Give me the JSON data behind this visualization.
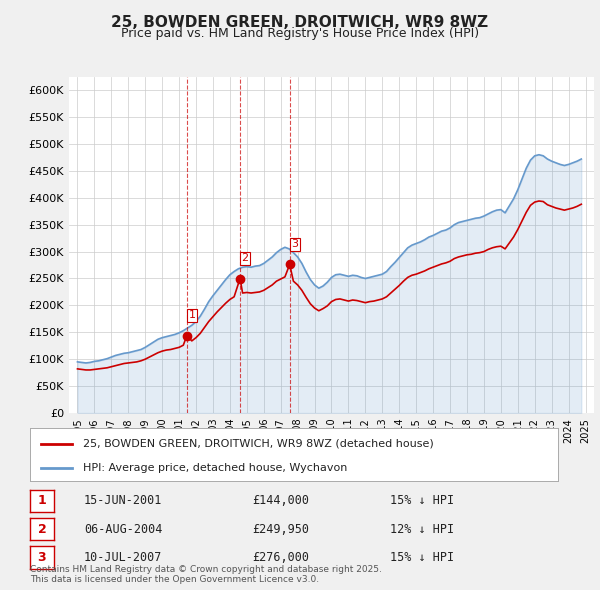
{
  "title": "25, BOWDEN GREEN, DROITWICH, WR9 8WZ",
  "subtitle": "Price paid vs. HM Land Registry's House Price Index (HPI)",
  "bg_color": "#f0f0f0",
  "plot_bg_color": "#ffffff",
  "legend_line1": "25, BOWDEN GREEN, DROITWICH, WR9 8WZ (detached house)",
  "legend_line2": "HPI: Average price, detached house, Wychavon",
  "red_color": "#cc0000",
  "blue_color": "#6699cc",
  "transactions": [
    {
      "num": 1,
      "date": "15-JUN-2001",
      "price": 144000,
      "pct": "15%",
      "dir": "↓",
      "x_year": 2001.46
    },
    {
      "num": 2,
      "date": "06-AUG-2004",
      "price": 249950,
      "pct": "12%",
      "dir": "↓",
      "x_year": 2004.6
    },
    {
      "num": 3,
      "date": "10-JUL-2007",
      "price": 276000,
      "pct": "15%",
      "dir": "↓",
      "x_year": 2007.53
    }
  ],
  "footer": "Contains HM Land Registry data © Crown copyright and database right 2025.\nThis data is licensed under the Open Government Licence v3.0.",
  "ylim": [
    0,
    625000
  ],
  "xlim_start": 1994.5,
  "xlim_end": 2025.5,
  "yticks": [
    0,
    50000,
    100000,
    150000,
    200000,
    250000,
    300000,
    350000,
    400000,
    450000,
    500000,
    550000,
    600000
  ],
  "ytick_labels": [
    "£0",
    "£50K",
    "£100K",
    "£150K",
    "£200K",
    "£250K",
    "£300K",
    "£350K",
    "£400K",
    "£450K",
    "£500K",
    "£550K",
    "£600K"
  ],
  "hpi_data": {
    "years": [
      1995.0,
      1995.25,
      1995.5,
      1995.75,
      1996.0,
      1996.25,
      1996.5,
      1996.75,
      1997.0,
      1997.25,
      1997.5,
      1997.75,
      1998.0,
      1998.25,
      1998.5,
      1998.75,
      1999.0,
      1999.25,
      1999.5,
      1999.75,
      2000.0,
      2000.25,
      2000.5,
      2000.75,
      2001.0,
      2001.25,
      2001.5,
      2001.75,
      2002.0,
      2002.25,
      2002.5,
      2002.75,
      2003.0,
      2003.25,
      2003.5,
      2003.75,
      2004.0,
      2004.25,
      2004.5,
      2004.75,
      2005.0,
      2005.25,
      2005.5,
      2005.75,
      2006.0,
      2006.25,
      2006.5,
      2006.75,
      2007.0,
      2007.25,
      2007.5,
      2007.75,
      2008.0,
      2008.25,
      2008.5,
      2008.75,
      2009.0,
      2009.25,
      2009.5,
      2009.75,
      2010.0,
      2010.25,
      2010.5,
      2010.75,
      2011.0,
      2011.25,
      2011.5,
      2011.75,
      2012.0,
      2012.25,
      2012.5,
      2012.75,
      2013.0,
      2013.25,
      2013.5,
      2013.75,
      2014.0,
      2014.25,
      2014.5,
      2014.75,
      2015.0,
      2015.25,
      2015.5,
      2015.75,
      2016.0,
      2016.25,
      2016.5,
      2016.75,
      2017.0,
      2017.25,
      2017.5,
      2017.75,
      2018.0,
      2018.25,
      2018.5,
      2018.75,
      2019.0,
      2019.25,
      2019.5,
      2019.75,
      2020.0,
      2020.25,
      2020.5,
      2020.75,
      2021.0,
      2021.25,
      2021.5,
      2021.75,
      2022.0,
      2022.25,
      2022.5,
      2022.75,
      2023.0,
      2023.25,
      2023.5,
      2023.75,
      2024.0,
      2024.25,
      2024.5,
      2024.75
    ],
    "values": [
      95000,
      94000,
      93000,
      94000,
      96000,
      97000,
      99000,
      101000,
      104000,
      107000,
      109000,
      111000,
      112000,
      114000,
      116000,
      118000,
      122000,
      127000,
      132000,
      137000,
      140000,
      142000,
      144000,
      146000,
      149000,
      153000,
      158000,
      163000,
      170000,
      180000,
      193000,
      207000,
      218000,
      228000,
      238000,
      248000,
      257000,
      263000,
      268000,
      271000,
      272000,
      271000,
      273000,
      274000,
      278000,
      284000,
      290000,
      298000,
      304000,
      308000,
      305000,
      298000,
      290000,
      278000,
      262000,
      248000,
      238000,
      232000,
      236000,
      243000,
      252000,
      257000,
      258000,
      256000,
      254000,
      256000,
      255000,
      252000,
      250000,
      252000,
      254000,
      256000,
      258000,
      263000,
      272000,
      280000,
      289000,
      298000,
      307000,
      312000,
      315000,
      318000,
      322000,
      327000,
      330000,
      334000,
      338000,
      340000,
      344000,
      350000,
      354000,
      356000,
      358000,
      360000,
      362000,
      363000,
      366000,
      370000,
      374000,
      377000,
      378000,
      372000,
      385000,
      398000,
      415000,
      435000,
      455000,
      470000,
      478000,
      480000,
      478000,
      472000,
      468000,
      465000,
      462000,
      460000,
      462000,
      465000,
      468000,
      472000
    ]
  },
  "red_data": {
    "years": [
      1995.0,
      1995.25,
      1995.5,
      1995.75,
      1996.0,
      1996.25,
      1996.5,
      1996.75,
      1997.0,
      1997.25,
      1997.5,
      1997.75,
      1998.0,
      1998.25,
      1998.5,
      1998.75,
      1999.0,
      1999.25,
      1999.5,
      1999.75,
      2000.0,
      2000.25,
      2000.5,
      2000.75,
      2001.0,
      2001.25,
      2001.46,
      2001.75,
      2002.0,
      2002.25,
      2002.5,
      2002.75,
      2003.0,
      2003.25,
      2003.5,
      2003.75,
      2004.0,
      2004.25,
      2004.6,
      2004.75,
      2005.0,
      2005.25,
      2005.5,
      2005.75,
      2006.0,
      2006.25,
      2006.5,
      2006.75,
      2007.0,
      2007.25,
      2007.53,
      2007.75,
      2008.0,
      2008.25,
      2008.5,
      2008.75,
      2009.0,
      2009.25,
      2009.5,
      2009.75,
      2010.0,
      2010.25,
      2010.5,
      2010.75,
      2011.0,
      2011.25,
      2011.5,
      2011.75,
      2012.0,
      2012.25,
      2012.5,
      2012.75,
      2013.0,
      2013.25,
      2013.5,
      2013.75,
      2014.0,
      2014.25,
      2014.5,
      2014.75,
      2015.0,
      2015.25,
      2015.5,
      2015.75,
      2016.0,
      2016.25,
      2016.5,
      2016.75,
      2017.0,
      2017.25,
      2017.5,
      2017.75,
      2018.0,
      2018.25,
      2018.5,
      2018.75,
      2019.0,
      2019.25,
      2019.5,
      2019.75,
      2020.0,
      2020.25,
      2020.5,
      2020.75,
      2021.0,
      2021.25,
      2021.5,
      2021.75,
      2022.0,
      2022.25,
      2022.5,
      2022.75,
      2023.0,
      2023.25,
      2023.5,
      2023.75,
      2024.0,
      2024.25,
      2024.5,
      2024.75
    ],
    "values": [
      82000,
      81000,
      80000,
      80000,
      81000,
      82000,
      83000,
      84000,
      86000,
      88000,
      90000,
      92000,
      93000,
      94000,
      95000,
      97000,
      100000,
      104000,
      108000,
      112000,
      115000,
      117000,
      118000,
      120000,
      122000,
      126000,
      144000,
      134000,
      140000,
      148000,
      159000,
      170000,
      179000,
      188000,
      196000,
      204000,
      211000,
      216000,
      249950,
      223000,
      224000,
      223000,
      224000,
      225000,
      228000,
      233000,
      238000,
      245000,
      249000,
      253000,
      276000,
      245000,
      238000,
      228000,
      215000,
      203000,
      195000,
      190000,
      194000,
      199000,
      207000,
      211000,
      212000,
      210000,
      208000,
      210000,
      209000,
      207000,
      205000,
      207000,
      208000,
      210000,
      212000,
      216000,
      223000,
      230000,
      237000,
      245000,
      252000,
      256000,
      258000,
      261000,
      264000,
      268000,
      271000,
      274000,
      277000,
      279000,
      282000,
      287000,
      290000,
      292000,
      294000,
      295000,
      297000,
      298000,
      300000,
      304000,
      307000,
      309000,
      310000,
      305000,
      316000,
      327000,
      341000,
      357000,
      373000,
      386000,
      392000,
      394000,
      393000,
      387000,
      384000,
      381000,
      379000,
      377000,
      379000,
      381000,
      384000,
      388000
    ]
  }
}
